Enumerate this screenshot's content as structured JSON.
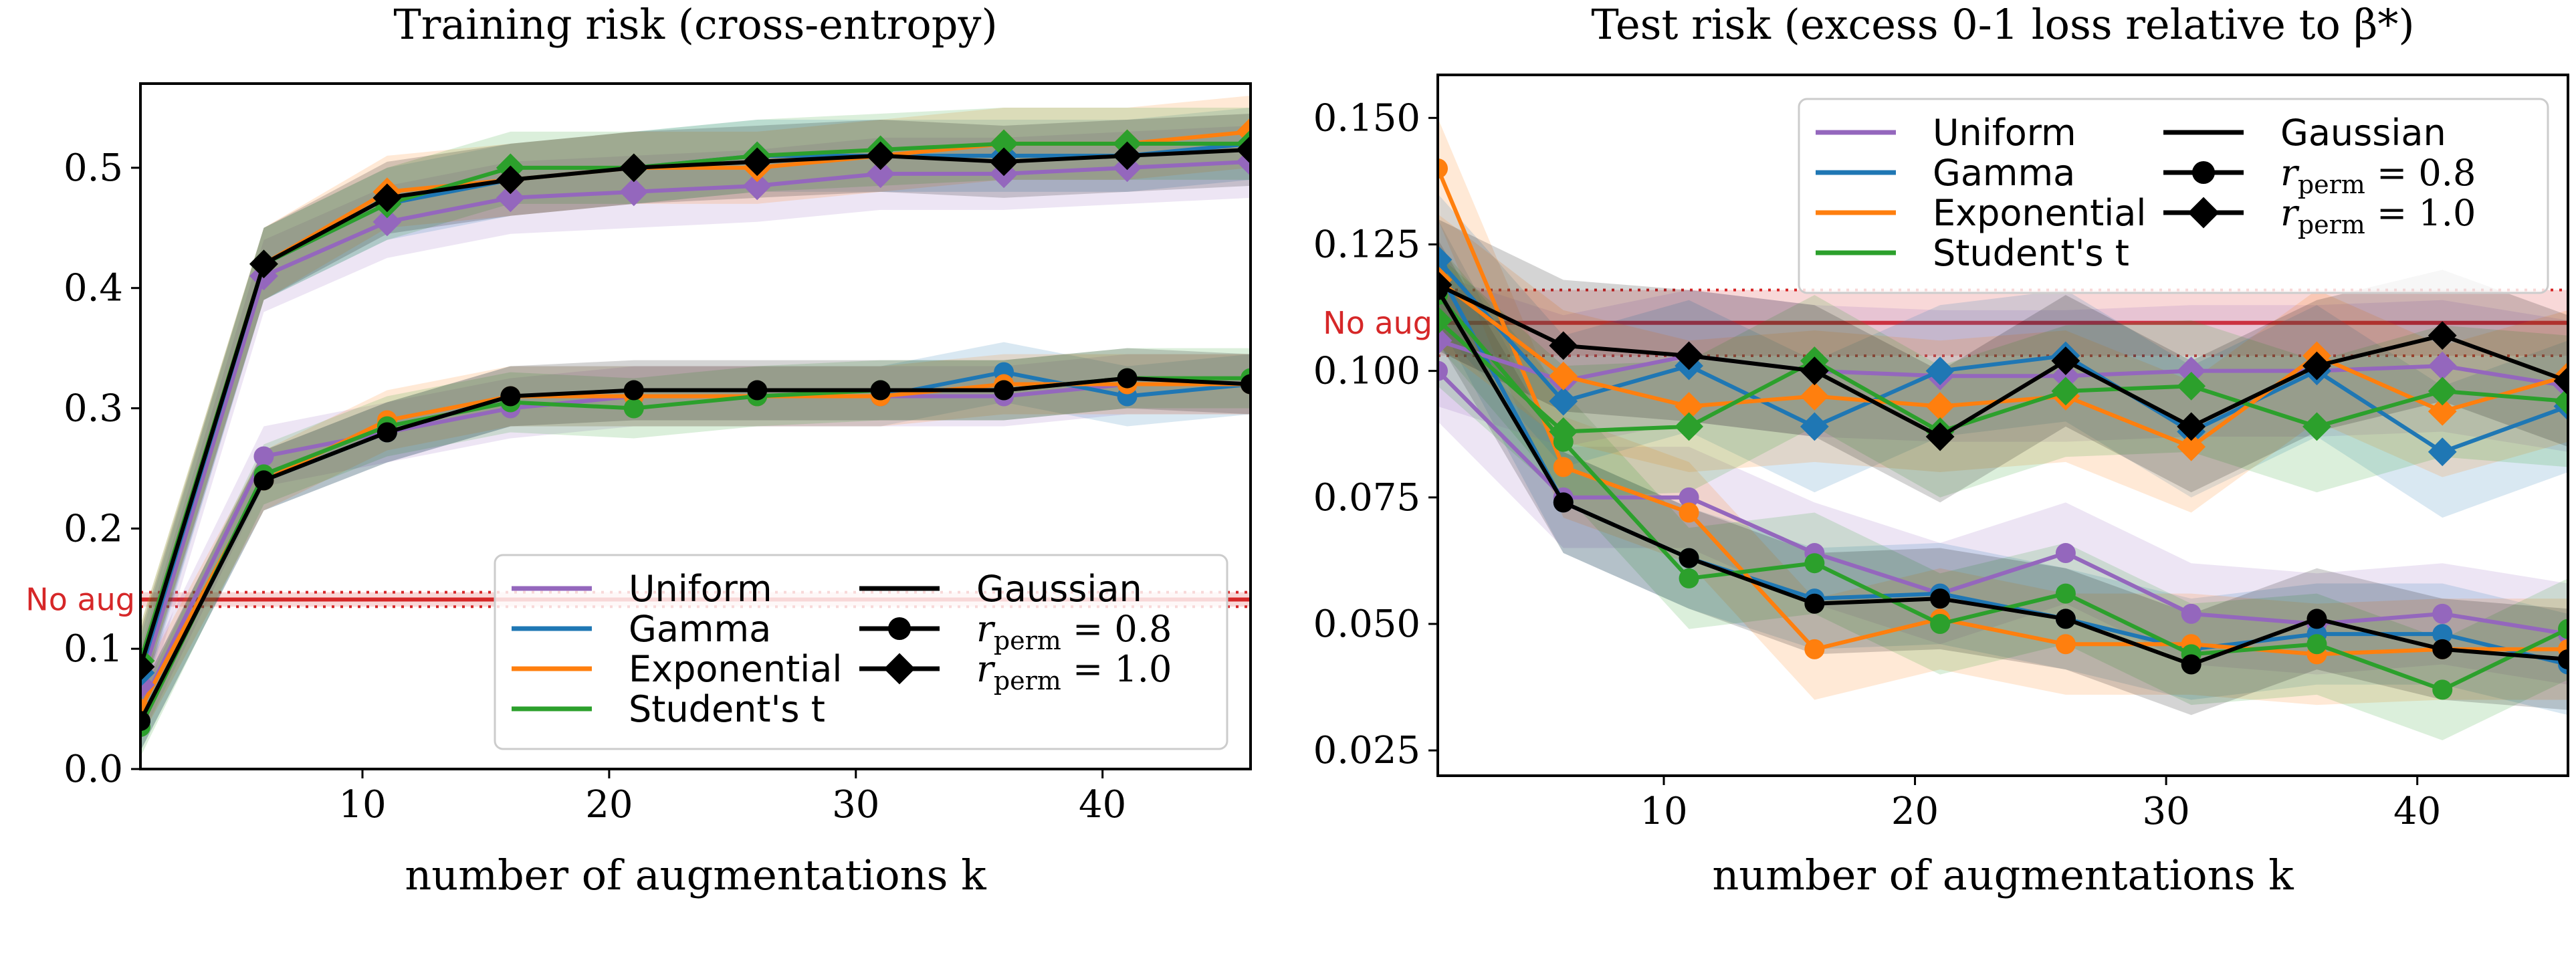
{
  "colors": {
    "uniform": "#9467bd",
    "gamma": "#1f77b4",
    "exponential": "#ff7f0e",
    "student": "#2ca02c",
    "gaussian": "#000000",
    "noaug": "#d62728"
  },
  "legend": {
    "uniform": "Uniform",
    "gamma": "Gamma",
    "exponential": "Exponential",
    "student": "Student's t",
    "gaussian": "Gaussian",
    "r08_sym": "r",
    "r08_sub": "perm",
    "r08_val": " = 0.8",
    "r10_sym": "r",
    "r10_sub": "perm",
    "r10_val": " = 1.0"
  },
  "chart_data": [
    {
      "type": "line",
      "title": "Training risk (cross-entropy)",
      "xlabel": "number of augmentations k",
      "ylabel": "",
      "xlim": [
        1,
        46
      ],
      "ylim": [
        0.0,
        0.57
      ],
      "xticks": [
        10,
        20,
        30,
        40
      ],
      "yticks": [
        0.0,
        0.1,
        0.2,
        0.3,
        0.4,
        0.5
      ],
      "ytick_labels": [
        "0.0",
        "0.1",
        "0.2",
        "0.3",
        "0.4",
        "0.5"
      ],
      "baseline": {
        "label": "No aug",
        "value": 0.141,
        "band": [
          0.135,
          0.147
        ]
      },
      "x": [
        1,
        6,
        11,
        16,
        21,
        26,
        31,
        36,
        41,
        46
      ],
      "legend_placement": "lower-right",
      "series": [
        {
          "name": "Uniform",
          "dist": "uniform",
          "r_perm": 0.8,
          "values": [
            0.05,
            0.26,
            0.28,
            0.3,
            0.31,
            0.31,
            0.31,
            0.31,
            0.32,
            0.32
          ],
          "band": 0.025
        },
        {
          "name": "Gamma",
          "dist": "gamma",
          "r_perm": 0.8,
          "values": [
            0.04,
            0.24,
            0.28,
            0.31,
            0.31,
            0.31,
            0.31,
            0.33,
            0.31,
            0.32
          ],
          "band": 0.025
        },
        {
          "name": "Exponential",
          "dist": "exponential",
          "r_perm": 0.8,
          "values": [
            0.05,
            0.24,
            0.29,
            0.31,
            0.31,
            0.31,
            0.31,
            0.32,
            0.32,
            0.32
          ],
          "band": 0.025
        },
        {
          "name": "Student's t",
          "dist": "student",
          "r_perm": 0.8,
          "values": [
            0.035,
            0.245,
            0.285,
            0.305,
            0.3,
            0.31,
            0.315,
            0.315,
            0.325,
            0.325
          ],
          "band": 0.025
        },
        {
          "name": "Gaussian",
          "dist": "gaussian",
          "r_perm": 0.8,
          "values": [
            0.04,
            0.24,
            0.28,
            0.31,
            0.315,
            0.315,
            0.315,
            0.315,
            0.325,
            0.32
          ],
          "band": 0.025
        },
        {
          "name": "Uniform",
          "dist": "uniform",
          "r_perm": 1.0,
          "values": [
            0.07,
            0.41,
            0.455,
            0.475,
            0.48,
            0.485,
            0.495,
            0.495,
            0.5,
            0.505
          ],
          "band": 0.03
        },
        {
          "name": "Gamma",
          "dist": "gamma",
          "r_perm": 1.0,
          "values": [
            0.08,
            0.42,
            0.47,
            0.49,
            0.5,
            0.51,
            0.51,
            0.51,
            0.51,
            0.52
          ],
          "band": 0.03
        },
        {
          "name": "Exponential",
          "dist": "exponential",
          "r_perm": 1.0,
          "values": [
            0.09,
            0.42,
            0.48,
            0.49,
            0.5,
            0.5,
            0.51,
            0.52,
            0.52,
            0.53
          ],
          "band": 0.03
        },
        {
          "name": "Student's t",
          "dist": "student",
          "r_perm": 1.0,
          "values": [
            0.09,
            0.42,
            0.47,
            0.5,
            0.5,
            0.51,
            0.515,
            0.52,
            0.52,
            0.52
          ],
          "band": 0.03
        },
        {
          "name": "Gaussian",
          "dist": "gaussian",
          "r_perm": 1.0,
          "values": [
            0.085,
            0.42,
            0.475,
            0.49,
            0.5,
            0.505,
            0.51,
            0.505,
            0.51,
            0.515
          ],
          "band": 0.03
        }
      ]
    },
    {
      "type": "line",
      "title": "Test risk (excess 0-1 loss relative to β*)",
      "xlabel": "number of augmentations k",
      "ylabel": "",
      "xlim": [
        1,
        46
      ],
      "ylim": [
        0.02,
        0.1585
      ],
      "xticks": [
        10,
        20,
        30,
        40
      ],
      "yticks": [
        0.025,
        0.05,
        0.075,
        0.1,
        0.125,
        0.15
      ],
      "ytick_labels": [
        "0.025",
        "0.050",
        "0.075",
        "0.100",
        "0.125",
        "0.150"
      ],
      "baseline": {
        "label": "No aug",
        "value": 0.1095,
        "band": [
          0.103,
          0.116
        ]
      },
      "x": [
        1,
        6,
        11,
        16,
        21,
        26,
        31,
        36,
        41,
        46
      ],
      "legend_placement": "upper-right",
      "series": [
        {
          "name": "Uniform",
          "dist": "uniform",
          "r_perm": 0.8,
          "values": [
            0.1,
            0.075,
            0.075,
            0.064,
            0.056,
            0.064,
            0.052,
            0.05,
            0.052,
            0.048
          ],
          "band": 0.01
        },
        {
          "name": "Gamma",
          "dist": "gamma",
          "r_perm": 0.8,
          "values": [
            0.12,
            0.074,
            0.063,
            0.055,
            0.056,
            0.051,
            0.045,
            0.048,
            0.048,
            0.042
          ],
          "band": 0.01
        },
        {
          "name": "Exponential",
          "dist": "exponential",
          "r_perm": 0.8,
          "values": [
            0.14,
            0.081,
            0.072,
            0.045,
            0.051,
            0.046,
            0.046,
            0.044,
            0.045,
            0.045
          ],
          "band": 0.01
        },
        {
          "name": "Student's t",
          "dist": "student",
          "r_perm": 0.8,
          "values": [
            0.115,
            0.086,
            0.059,
            0.062,
            0.05,
            0.056,
            0.044,
            0.046,
            0.037,
            0.049
          ],
          "band": 0.01
        },
        {
          "name": "Gaussian",
          "dist": "gaussian",
          "r_perm": 0.8,
          "values": [
            0.116,
            0.074,
            0.063,
            0.054,
            0.055,
            0.051,
            0.042,
            0.051,
            0.045,
            0.043
          ],
          "band": 0.01
        },
        {
          "name": "Uniform",
          "dist": "uniform",
          "r_perm": 1.0,
          "values": [
            0.106,
            0.098,
            0.103,
            0.1,
            0.099,
            0.099,
            0.1,
            0.1,
            0.101,
            0.097
          ],
          "band": 0.013
        },
        {
          "name": "Gamma",
          "dist": "gamma",
          "r_perm": 1.0,
          "values": [
            0.122,
            0.094,
            0.101,
            0.089,
            0.1,
            0.103,
            0.088,
            0.1,
            0.084,
            0.093
          ],
          "band": 0.013
        },
        {
          "name": "Exponential",
          "dist": "exponential",
          "r_perm": 1.0,
          "values": [
            0.118,
            0.099,
            0.093,
            0.095,
            0.093,
            0.095,
            0.085,
            0.103,
            0.092,
            0.099
          ],
          "band": 0.013
        },
        {
          "name": "Student's t",
          "dist": "student",
          "r_perm": 1.0,
          "values": [
            0.11,
            0.088,
            0.089,
            0.102,
            0.088,
            0.096,
            0.097,
            0.089,
            0.096,
            0.094
          ],
          "band": 0.013
        },
        {
          "name": "Gaussian",
          "dist": "gaussian",
          "r_perm": 1.0,
          "values": [
            0.117,
            0.105,
            0.103,
            0.1,
            0.087,
            0.102,
            0.089,
            0.101,
            0.107,
            0.098
          ],
          "band": 0.013
        }
      ]
    }
  ]
}
